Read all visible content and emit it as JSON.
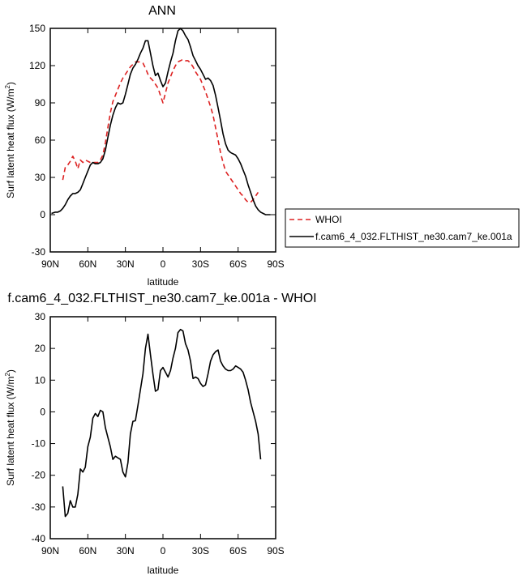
{
  "chart_data": [
    {
      "type": "line",
      "title": "ANN",
      "xlabel": "latitude",
      "ylabel": "Surf latent heat flux (W/m²)",
      "ylabel_main": "Surf latent heat flux (W/m",
      "ylabel_sup": "2",
      "ylabel_close": ")",
      "xlim": [
        -90,
        90
      ],
      "ylim": [
        -30,
        150
      ],
      "xticks": [
        -90,
        -60,
        -30,
        0,
        30,
        60,
        90
      ],
      "xtick_labels": [
        "90N",
        "60N",
        "30N",
        "0",
        "30S",
        "60S",
        "90S"
      ],
      "yticks": [
        -30,
        0,
        30,
        60,
        90,
        120,
        150
      ],
      "ytick_labels": [
        "-30",
        "0",
        "30",
        "60",
        "90",
        "120",
        "150"
      ],
      "legend_position": "right",
      "series": [
        {
          "name": "WHOI",
          "color": "#dd2222",
          "dash": "dashed",
          "points": [
            [
              -80,
              28
            ],
            [
              -78,
              38
            ],
            [
              -76,
              40
            ],
            [
              -74,
              43
            ],
            [
              -72,
              47
            ],
            [
              -70,
              43
            ],
            [
              -68,
              37
            ],
            [
              -66,
              44
            ],
            [
              -64,
              42
            ],
            [
              -62,
              44
            ],
            [
              -60,
              43
            ],
            [
              -58,
              42
            ],
            [
              -56,
              42
            ],
            [
              -54,
              42
            ],
            [
              -52,
              42
            ],
            [
              -50,
              44
            ],
            [
              -48,
              48
            ],
            [
              -46,
              58
            ],
            [
              -44,
              70
            ],
            [
              -42,
              82
            ],
            [
              -40,
              91
            ],
            [
              -38,
              96
            ],
            [
              -36,
              101
            ],
            [
              -34,
              106
            ],
            [
              -32,
              110
            ],
            [
              -30,
              113
            ],
            [
              -28,
              116
            ],
            [
              -26,
              119
            ],
            [
              -24,
              121
            ],
            [
              -22,
              123
            ],
            [
              -20,
              123
            ],
            [
              -18,
              123
            ],
            [
              -16,
              122
            ],
            [
              -14,
              118
            ],
            [
              -12,
              113
            ],
            [
              -10,
              110
            ],
            [
              -8,
              108
            ],
            [
              -6,
              105
            ],
            [
              -4,
              102
            ],
            [
              -2,
              96
            ],
            [
              0,
              90
            ],
            [
              2,
              98
            ],
            [
              4,
              106
            ],
            [
              6,
              111
            ],
            [
              8,
              116
            ],
            [
              10,
              120
            ],
            [
              12,
              123
            ],
            [
              14,
              124
            ],
            [
              16,
              125
            ],
            [
              18,
              124
            ],
            [
              20,
              124
            ],
            [
              22,
              122
            ],
            [
              24,
              119
            ],
            [
              26,
              115
            ],
            [
              28,
              112
            ],
            [
              30,
              109
            ],
            [
              32,
              104
            ],
            [
              34,
              99
            ],
            [
              36,
              93
            ],
            [
              38,
              87
            ],
            [
              40,
              80
            ],
            [
              42,
              70
            ],
            [
              44,
              60
            ],
            [
              46,
              50
            ],
            [
              48,
              42
            ],
            [
              50,
              35
            ],
            [
              52,
              32
            ],
            [
              54,
              29
            ],
            [
              56,
              26
            ],
            [
              58,
              23
            ],
            [
              60,
              20
            ],
            [
              62,
              17
            ],
            [
              64,
              15
            ],
            [
              66,
              12
            ],
            [
              68,
              10
            ],
            [
              70,
              10
            ],
            [
              72,
              12
            ],
            [
              74,
              15
            ],
            [
              76,
              18
            ]
          ]
        },
        {
          "name": "f.cam6_4_032.FLTHIST_ne30.cam7_ke.001a",
          "color": "#000000",
          "dash": "solid",
          "points": [
            [
              -89,
              1
            ],
            [
              -86,
              2
            ],
            [
              -84,
              2
            ],
            [
              -82,
              3
            ],
            [
              -80,
              5
            ],
            [
              -78,
              8
            ],
            [
              -76,
              12
            ],
            [
              -74,
              15
            ],
            [
              -72,
              17
            ],
            [
              -70,
              17
            ],
            [
              -68,
              18
            ],
            [
              -66,
              20
            ],
            [
              -64,
              25
            ],
            [
              -62,
              30
            ],
            [
              -60,
              35
            ],
            [
              -58,
              40
            ],
            [
              -56,
              42
            ],
            [
              -54,
              41
            ],
            [
              -52,
              41
            ],
            [
              -50,
              42
            ],
            [
              -48,
              45
            ],
            [
              -46,
              52
            ],
            [
              -44,
              62
            ],
            [
              -42,
              72
            ],
            [
              -40,
              80
            ],
            [
              -38,
              86
            ],
            [
              -36,
              90
            ],
            [
              -34,
              89
            ],
            [
              -32,
              90
            ],
            [
              -30,
              97
            ],
            [
              -28,
              105
            ],
            [
              -26,
              113
            ],
            [
              -24,
              118
            ],
            [
              -22,
              121
            ],
            [
              -20,
              125
            ],
            [
              -18,
              130
            ],
            [
              -16,
              134
            ],
            [
              -14,
              140
            ],
            [
              -12,
              140
            ],
            [
              -10,
              130
            ],
            [
              -8,
              120
            ],
            [
              -6,
              112
            ],
            [
              -4,
              114
            ],
            [
              -2,
              108
            ],
            [
              0,
              103
            ],
            [
              2,
              106
            ],
            [
              4,
              115
            ],
            [
              6,
              123
            ],
            [
              8,
              130
            ],
            [
              10,
              140
            ],
            [
              12,
              148
            ],
            [
              14,
              150
            ],
            [
              16,
              148
            ],
            [
              18,
              144
            ],
            [
              20,
              141
            ],
            [
              22,
              135
            ],
            [
              24,
              128
            ],
            [
              26,
              124
            ],
            [
              28,
              120
            ],
            [
              30,
              117
            ],
            [
              32,
              113
            ],
            [
              34,
              109
            ],
            [
              36,
              110
            ],
            [
              38,
              108
            ],
            [
              40,
              104
            ],
            [
              42,
              96
            ],
            [
              44,
              86
            ],
            [
              46,
              76
            ],
            [
              48,
              65
            ],
            [
              50,
              57
            ],
            [
              52,
              52
            ],
            [
              54,
              50
            ],
            [
              56,
              49
            ],
            [
              58,
              48
            ],
            [
              60,
              45
            ],
            [
              62,
              41
            ],
            [
              64,
              36
            ],
            [
              66,
              31
            ],
            [
              68,
              24
            ],
            [
              70,
              18
            ],
            [
              72,
              12
            ],
            [
              74,
              7
            ],
            [
              76,
              4
            ],
            [
              78,
              2
            ],
            [
              80,
              1
            ],
            [
              82,
              0
            ],
            [
              84,
              0
            ],
            [
              86,
              0
            ]
          ]
        }
      ]
    },
    {
      "type": "line",
      "title": "f.cam6_4_032.FLTHIST_ne30.cam7_ke.001a - WHOI",
      "xlabel": "latitude",
      "ylabel": "Surf latent heat flux (W/m²)",
      "ylabel_main": "Surf latent heat flux (W/m",
      "ylabel_sup": "2",
      "ylabel_close": ")",
      "xlim": [
        -90,
        90
      ],
      "ylim": [
        -40,
        30
      ],
      "xticks": [
        -90,
        -60,
        -30,
        0,
        30,
        60,
        90
      ],
      "xtick_labels": [
        "90N",
        "60N",
        "30N",
        "0",
        "30S",
        "60S",
        "90S"
      ],
      "yticks": [
        -40,
        -30,
        -20,
        -10,
        0,
        10,
        20,
        30
      ],
      "ytick_labels": [
        "-40",
        "-30",
        "-20",
        "-10",
        "0",
        "10",
        "20",
        "30"
      ],
      "series": [
        {
          "color": "#000000",
          "dash": "solid",
          "points": [
            [
              -80,
              -23.5
            ],
            [
              -78,
              -33
            ],
            [
              -76,
              -32
            ],
            [
              -74,
              -28
            ],
            [
              -72,
              -30
            ],
            [
              -70,
              -30
            ],
            [
              -68,
              -26
            ],
            [
              -66,
              -18
            ],
            [
              -64,
              -19
            ],
            [
              -62,
              -17.5
            ],
            [
              -60,
              -11
            ],
            [
              -58,
              -8
            ],
            [
              -56,
              -2
            ],
            [
              -54,
              -0.5
            ],
            [
              -52,
              -1.5
            ],
            [
              -50,
              0.5
            ],
            [
              -48,
              0
            ],
            [
              -46,
              -5
            ],
            [
              -44,
              -8
            ],
            [
              -42,
              -11
            ],
            [
              -40,
              -15
            ],
            [
              -38,
              -14
            ],
            [
              -36,
              -14.5
            ],
            [
              -34,
              -15
            ],
            [
              -32,
              -19
            ],
            [
              -30,
              -20.5
            ],
            [
              -28,
              -16
            ],
            [
              -26,
              -7
            ],
            [
              -24,
              -3
            ],
            [
              -22,
              -2.8
            ],
            [
              -20,
              2
            ],
            [
              -18,
              7
            ],
            [
              -16,
              12
            ],
            [
              -14,
              20
            ],
            [
              -12,
              24.5
            ],
            [
              -10,
              18
            ],
            [
              -8,
              12
            ],
            [
              -6,
              6.5
            ],
            [
              -4,
              7
            ],
            [
              -2,
              13
            ],
            [
              0,
              14
            ],
            [
              2,
              12.5
            ],
            [
              4,
              11
            ],
            [
              6,
              13
            ],
            [
              8,
              17
            ],
            [
              10,
              20
            ],
            [
              12,
              25
            ],
            [
              14,
              26
            ],
            [
              16,
              25.5
            ],
            [
              18,
              21.5
            ],
            [
              20,
              19.5
            ],
            [
              22,
              16
            ],
            [
              24,
              10.5
            ],
            [
              26,
              11
            ],
            [
              28,
              10.5
            ],
            [
              30,
              9
            ],
            [
              32,
              8
            ],
            [
              34,
              8.5
            ],
            [
              36,
              12
            ],
            [
              38,
              16
            ],
            [
              40,
              18
            ],
            [
              42,
              19
            ],
            [
              44,
              19.5
            ],
            [
              46,
              16
            ],
            [
              48,
              14.5
            ],
            [
              50,
              13.5
            ],
            [
              52,
              13
            ],
            [
              54,
              13
            ],
            [
              56,
              13.5
            ],
            [
              58,
              14.5
            ],
            [
              60,
              14
            ],
            [
              62,
              13.5
            ],
            [
              64,
              12.5
            ],
            [
              66,
              10
            ],
            [
              68,
              7
            ],
            [
              70,
              3
            ],
            [
              72,
              0
            ],
            [
              74,
              -3
            ],
            [
              76,
              -7
            ],
            [
              78,
              -15
            ]
          ]
        }
      ]
    }
  ]
}
